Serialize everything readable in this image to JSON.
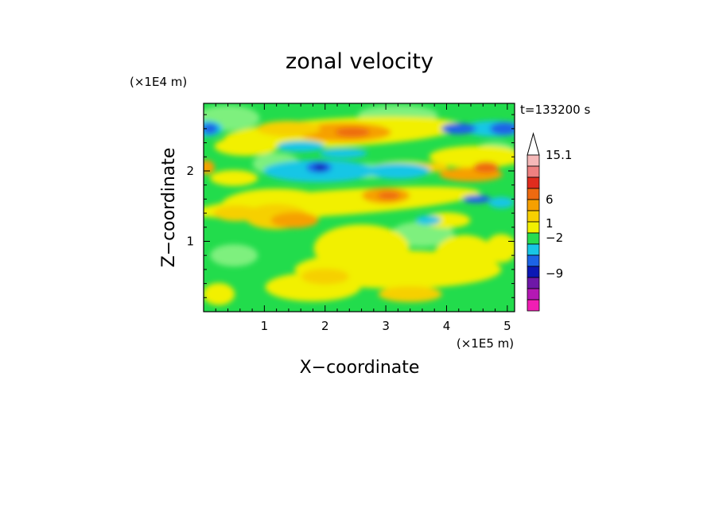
{
  "chart_data": {
    "type": "heatmap",
    "title": "zonal velocity",
    "annotation": "t=133200 s",
    "xlabel": "X−coordinate",
    "ylabel": "Z−coordinate",
    "x_unit": "(×1E5 m)",
    "y_unit": "(×1E4 m)",
    "xlim": [
      0,
      5.12
    ],
    "ylim": [
      0,
      2.96
    ],
    "x_ticks": [
      {
        "value": 1,
        "label": "1"
      },
      {
        "value": 2,
        "label": "2"
      },
      {
        "value": 3,
        "label": "3"
      },
      {
        "value": 4,
        "label": "4"
      },
      {
        "value": 5,
        "label": "5"
      }
    ],
    "y_ticks": [
      {
        "value": 1,
        "label": "1"
      },
      {
        "value": 2,
        "label": "2"
      }
    ],
    "colorbar": {
      "labels": [
        "15.1",
        "6",
        "1",
        "−2",
        "−9"
      ],
      "levels": [
        {
          "color": "#f5b8b8"
        },
        {
          "color": "#ee8080"
        },
        {
          "color": "#e02c1e"
        },
        {
          "color": "#ee6a10"
        },
        {
          "color": "#f6a000"
        },
        {
          "color": "#f8d000"
        },
        {
          "color": "#f2f000"
        },
        {
          "color": "#28dc50"
        },
        {
          "color": "#18c6e6"
        },
        {
          "color": "#1c64e6"
        },
        {
          "color": "#0c18b4"
        },
        {
          "color": "#6e18a8"
        },
        {
          "color": "#b418b4"
        },
        {
          "color": "#f01eb4"
        }
      ]
    },
    "field_colors": {
      "light_green": "#7ef07e",
      "green": "#22dc4c",
      "yellow": "#f2f000",
      "gold": "#f6d000",
      "orange": "#f6a000",
      "deep_orange": "#ee6a10",
      "cyan": "#18c6e6",
      "blue": "#1c64e6",
      "navy": "#0c18b4"
    }
  }
}
